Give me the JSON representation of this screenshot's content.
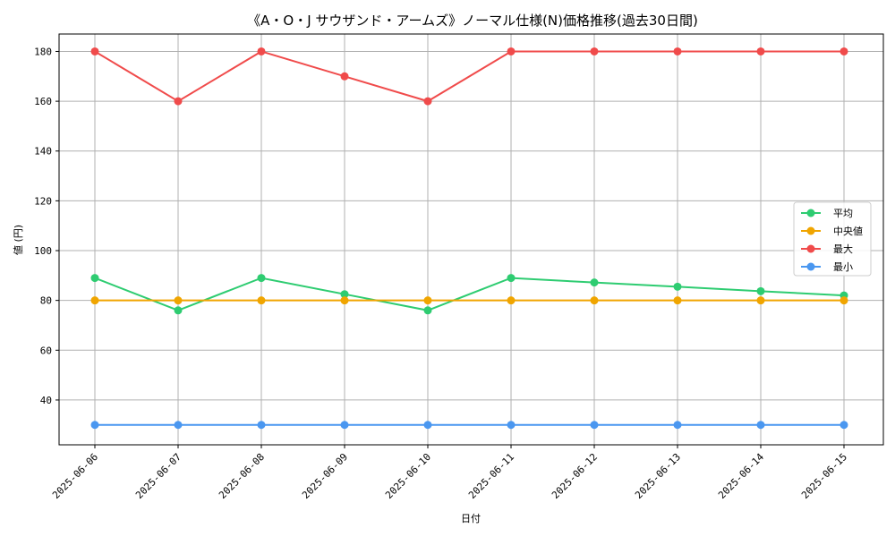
{
  "chart_data": {
    "type": "line",
    "title": "《A・O・J サウザンド・アームズ》ノーマル仕様(N)価格推移(過去30日間)",
    "xlabel": "日付",
    "ylabel": "値 (円)",
    "categories": [
      "2025-06-06",
      "2025-06-07",
      "2025-06-08",
      "2025-06-09",
      "2025-06-10",
      "2025-06-11",
      "2025-06-12",
      "2025-06-13",
      "2025-06-14",
      "2025-06-15"
    ],
    "ylim": [
      22,
      187
    ],
    "yticks": [
      40,
      60,
      80,
      100,
      120,
      140,
      160,
      180
    ],
    "grid": true,
    "legend_position": "center-right",
    "series": [
      {
        "name": "平均",
        "color": "#2ecc71",
        "values": [
          89,
          76,
          89,
          82.5,
          76,
          89,
          87.2,
          85.5,
          83.7,
          82
        ]
      },
      {
        "name": "中央値",
        "color": "#f0a500",
        "values": [
          80,
          80,
          80,
          80,
          80,
          80,
          80,
          80,
          80,
          80
        ]
      },
      {
        "name": "最大",
        "color": "#f04b4b",
        "values": [
          180,
          160,
          180,
          170,
          160,
          180,
          180,
          180,
          180,
          180
        ]
      },
      {
        "name": "最小",
        "color": "#4a97f0",
        "values": [
          30,
          30,
          30,
          30,
          30,
          30,
          30,
          30,
          30,
          30
        ]
      }
    ]
  }
}
